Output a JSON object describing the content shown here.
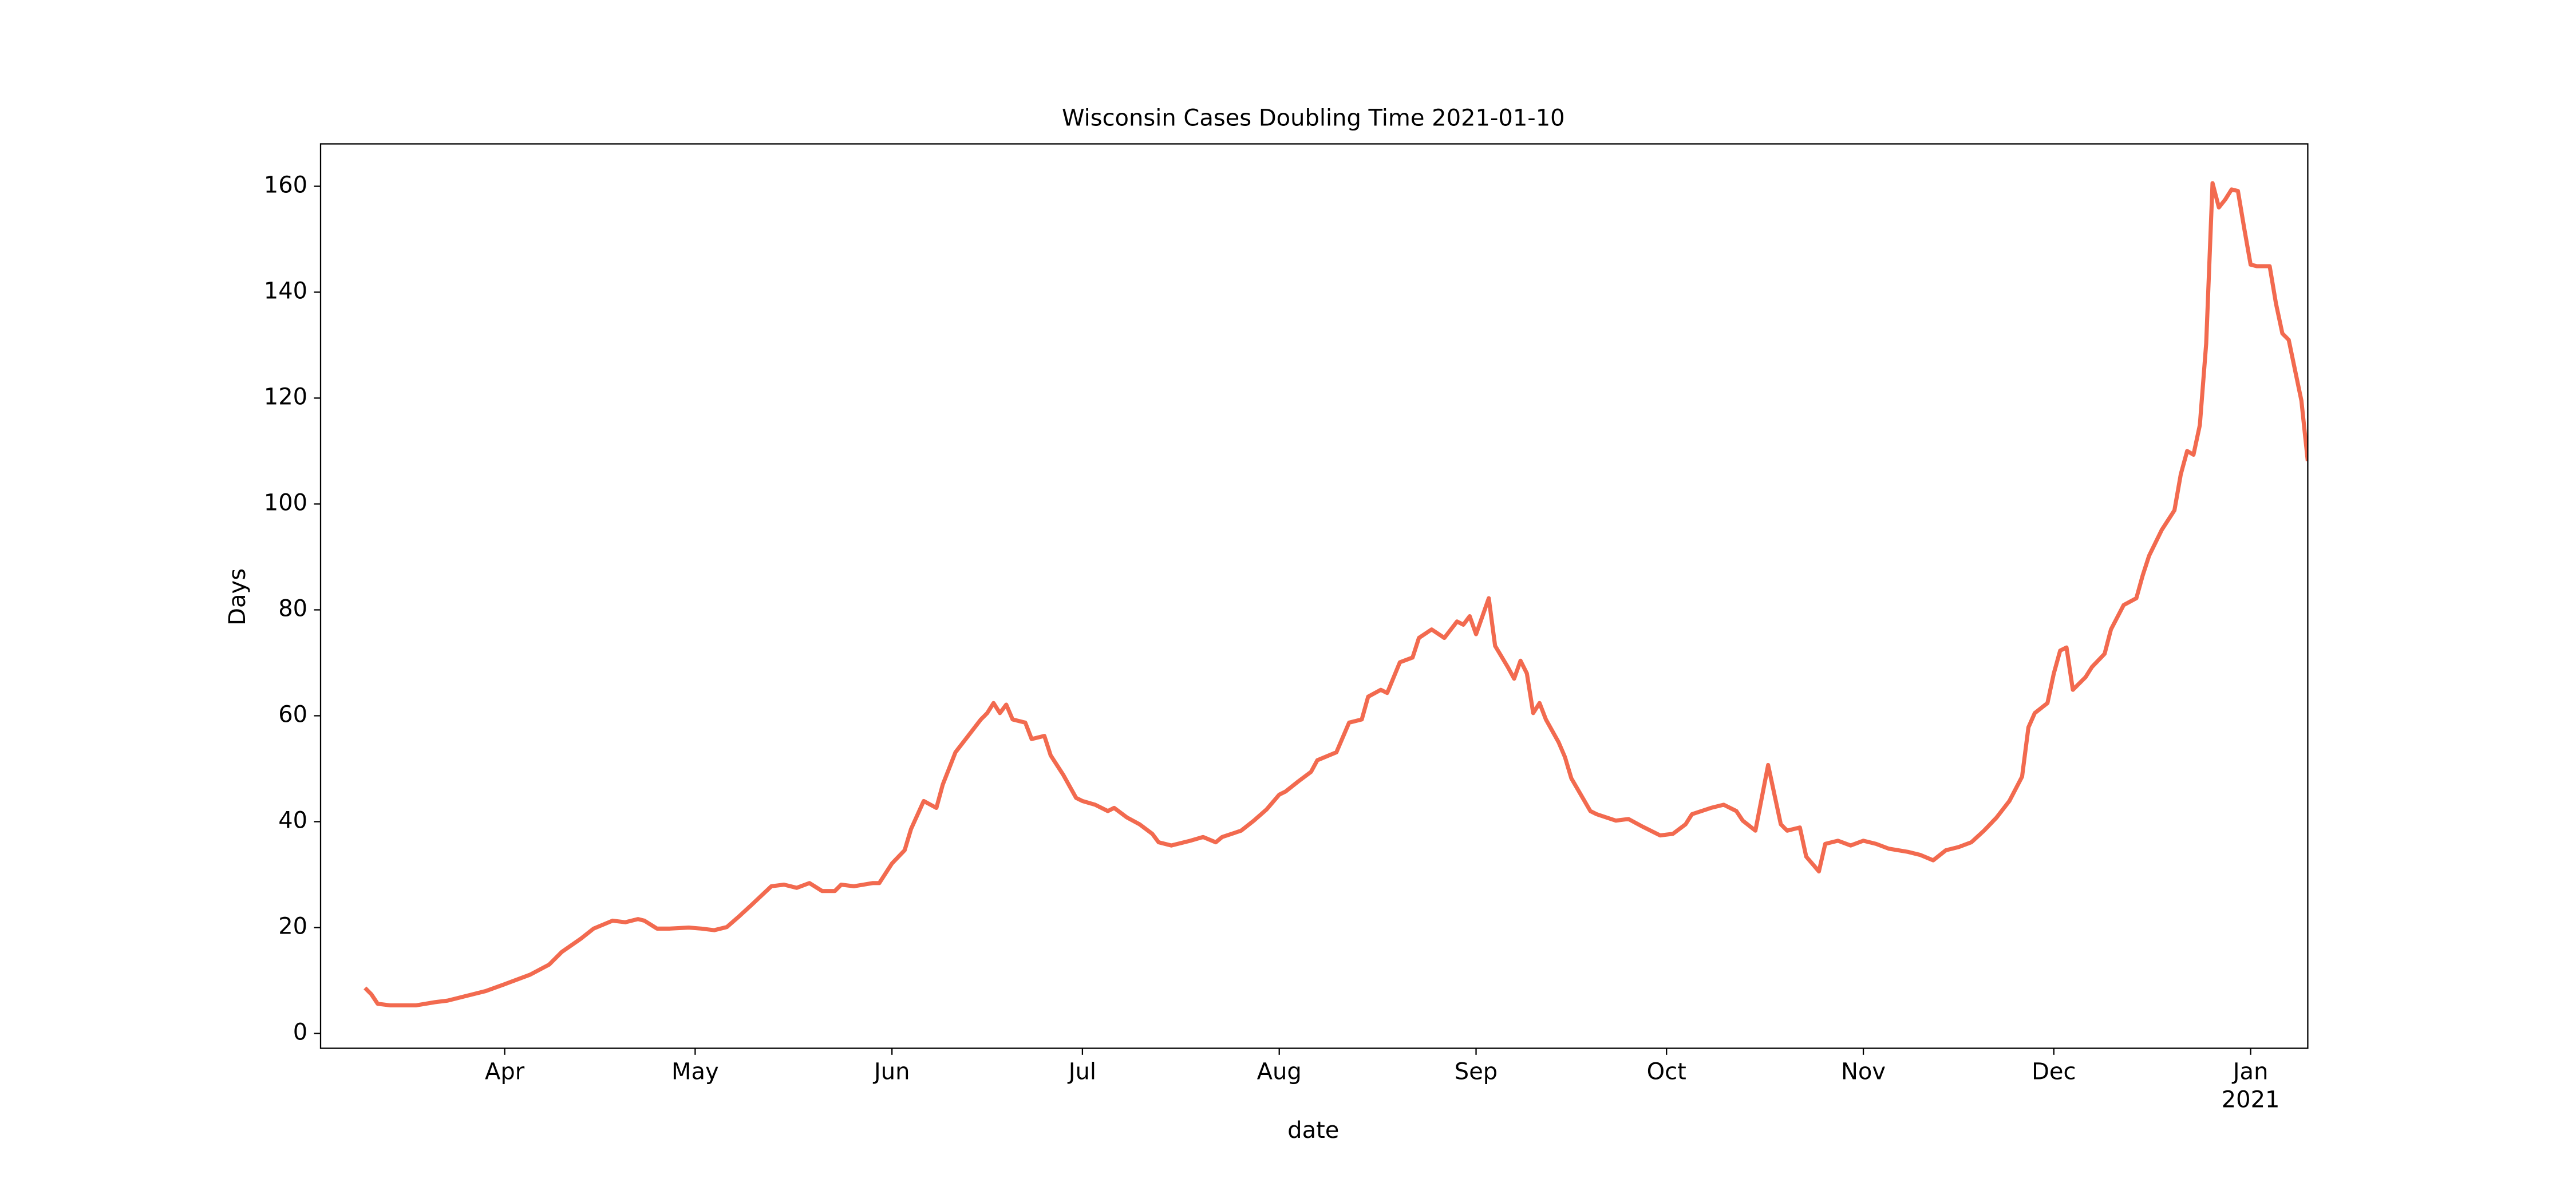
{
  "chart_data": {
    "type": "line",
    "title": "Wisconsin Cases Doubling Time 2021-01-10",
    "x_label": "date",
    "y_label": "Days",
    "color": "#f26a4f",
    "x": [
      "2020-03-10",
      "2020-03-11",
      "2020-03-12",
      "2020-03-14",
      "2020-03-18",
      "2020-03-21",
      "2020-03-23",
      "2020-03-27",
      "2020-03-29",
      "2020-04-01",
      "2020-04-05",
      "2020-04-08",
      "2020-04-10",
      "2020-04-13",
      "2020-04-15",
      "2020-04-18",
      "2020-04-20",
      "2020-04-22",
      "2020-04-23",
      "2020-04-25",
      "2020-04-27",
      "2020-04-30",
      "2020-05-02",
      "2020-05-04",
      "2020-05-06",
      "2020-05-08",
      "2020-05-10",
      "2020-05-13",
      "2020-05-15",
      "2020-05-17",
      "2020-05-19",
      "2020-05-21",
      "2020-05-23",
      "2020-05-24",
      "2020-05-26",
      "2020-05-29",
      "2020-05-30",
      "2020-06-01",
      "2020-06-03",
      "2020-06-04",
      "2020-06-06",
      "2020-06-08",
      "2020-06-09",
      "2020-06-11",
      "2020-06-13",
      "2020-06-15",
      "2020-06-16",
      "2020-06-17",
      "2020-06-18",
      "2020-06-19",
      "2020-06-20",
      "2020-06-22",
      "2020-06-23",
      "2020-06-25",
      "2020-06-26",
      "2020-06-28",
      "2020-06-30",
      "2020-07-01",
      "2020-07-03",
      "2020-07-05",
      "2020-07-06",
      "2020-07-08",
      "2020-07-10",
      "2020-07-12",
      "2020-07-13",
      "2020-07-15",
      "2020-07-18",
      "2020-07-20",
      "2020-07-22",
      "2020-07-23",
      "2020-07-26",
      "2020-07-28",
      "2020-07-30",
      "2020-08-01",
      "2020-08-02",
      "2020-08-04",
      "2020-08-06",
      "2020-08-07",
      "2020-08-10",
      "2020-08-12",
      "2020-08-14",
      "2020-08-15",
      "2020-08-17",
      "2020-08-18",
      "2020-08-20",
      "2020-08-22",
      "2020-08-23",
      "2020-08-25",
      "2020-08-27",
      "2020-08-29",
      "2020-08-30",
      "2020-08-31",
      "2020-09-01",
      "2020-09-03",
      "2020-09-04",
      "2020-09-06",
      "2020-09-07",
      "2020-09-08",
      "2020-09-09",
      "2020-09-10",
      "2020-09-11",
      "2020-09-12",
      "2020-09-14",
      "2020-09-15",
      "2020-09-16",
      "2020-09-19",
      "2020-09-20",
      "2020-09-23",
      "2020-09-25",
      "2020-09-27",
      "2020-09-30",
      "2020-10-02",
      "2020-10-04",
      "2020-10-05",
      "2020-10-08",
      "2020-10-10",
      "2020-10-12",
      "2020-10-13",
      "2020-10-15",
      "2020-10-17",
      "2020-10-19",
      "2020-10-20",
      "2020-10-22",
      "2020-10-23",
      "2020-10-25",
      "2020-10-26",
      "2020-10-28",
      "2020-10-30",
      "2020-11-01",
      "2020-11-03",
      "2020-11-05",
      "2020-11-08",
      "2020-11-10",
      "2020-11-12",
      "2020-11-14",
      "2020-11-16",
      "2020-11-18",
      "2020-11-20",
      "2020-11-22",
      "2020-11-24",
      "2020-11-26",
      "2020-11-27",
      "2020-11-28",
      "2020-11-30",
      "2020-12-01",
      "2020-12-02",
      "2020-12-03",
      "2020-12-04",
      "2020-12-06",
      "2020-12-07",
      "2020-12-09",
      "2020-12-10",
      "2020-12-12",
      "2020-12-14",
      "2020-12-15",
      "2020-12-16",
      "2020-12-18",
      "2020-12-20",
      "2020-12-21",
      "2020-12-22",
      "2020-12-23",
      "2020-12-24",
      "2020-12-25",
      "2020-12-26",
      "2020-12-27",
      "2020-12-28",
      "2020-12-29",
      "2020-12-30",
      "2020-12-31",
      "2021-01-01",
      "2021-01-02",
      "2021-01-04",
      "2021-01-05",
      "2021-01-06",
      "2021-01-07",
      "2021-01-09",
      "2021-01-10"
    ],
    "values": [
      8.6,
      7.4,
      5.6,
      5.3,
      5.3,
      5.9,
      6.2,
      7.4,
      8,
      9.3,
      11.1,
      13,
      15.4,
      17.9,
      19.8,
      21.3,
      21,
      21.6,
      21.3,
      19.8,
      19.8,
      20,
      19.8,
      19.5,
      20.1,
      22.2,
      24.4,
      27.8,
      28.1,
      27.5,
      28.4,
      26.9,
      26.9,
      28.1,
      27.8,
      28.4,
      28.4,
      32.1,
      34.6,
      38.6,
      43.9,
      42.6,
      47,
      53.1,
      56.2,
      59.3,
      60.5,
      62.4,
      60.5,
      62.1,
      59.3,
      58.7,
      55.6,
      56.2,
      52.5,
      48.8,
      44.5,
      43.9,
      43.2,
      42,
      42.6,
      40.8,
      39.5,
      37.7,
      36.1,
      35.5,
      36.4,
      37.1,
      36.1,
      37.1,
      38.3,
      40.2,
      42.3,
      45.1,
      45.7,
      47.6,
      49.4,
      51.6,
      53.1,
      58.7,
      59.3,
      63.6,
      64.9,
      64.3,
      70.1,
      71,
      74.7,
      76.3,
      74.7,
      77.8,
      77.2,
      78.8,
      75.4,
      82.2,
      73.2,
      69.2,
      67,
      70.4,
      68,
      60.5,
      62.4,
      59.3,
      55,
      52.2,
      48.2,
      42,
      41.4,
      40.2,
      40.5,
      39.2,
      37.4,
      37.7,
      39.5,
      41.4,
      42.6,
      43.2,
      42,
      40.2,
      38.3,
      50.7,
      39.5,
      38.3,
      38.9,
      33.4,
      30.6,
      35.8,
      36.4,
      35.5,
      36.4,
      35.8,
      34.9,
      34.3,
      33.7,
      32.7,
      34.6,
      35.2,
      36.1,
      38.3,
      40.8,
      43.9,
      48.5,
      57.8,
      60.5,
      62.4,
      68,
      72.3,
      72.9,
      64.9,
      67.3,
      69.2,
      71.7,
      76.3,
      80.9,
      82.2,
      86.5,
      90.2,
      95.1,
      98.8,
      105.6,
      110,
      109.3,
      114.9,
      130.3,
      160.6,
      156,
      157.5,
      159.4,
      159.1,
      152,
      145.2,
      144.9,
      144.9,
      137.8,
      132.2,
      131,
      119.5,
      108.1
    ],
    "xlim": [
      "2020-03-03",
      "2021-01-10"
    ],
    "xticks": [
      {
        "value": "2020-04-01",
        "label": "Apr"
      },
      {
        "value": "2020-05-01",
        "label": "May"
      },
      {
        "value": "2020-06-01",
        "label": "Jun"
      },
      {
        "value": "2020-07-01",
        "label": "Jul"
      },
      {
        "value": "2020-08-01",
        "label": "Aug"
      },
      {
        "value": "2020-09-01",
        "label": "Sep"
      },
      {
        "value": "2020-10-01",
        "label": "Oct"
      },
      {
        "value": "2020-11-01",
        "label": "Nov"
      },
      {
        "value": "2020-12-01",
        "label": "Dec"
      },
      {
        "value": "2021-01-01",
        "label": "Jan\n2021"
      }
    ],
    "ylim": [
      -2.8,
      168
    ],
    "yticks": [
      0,
      20,
      40,
      60,
      80,
      100,
      120,
      140,
      160
    ]
  }
}
